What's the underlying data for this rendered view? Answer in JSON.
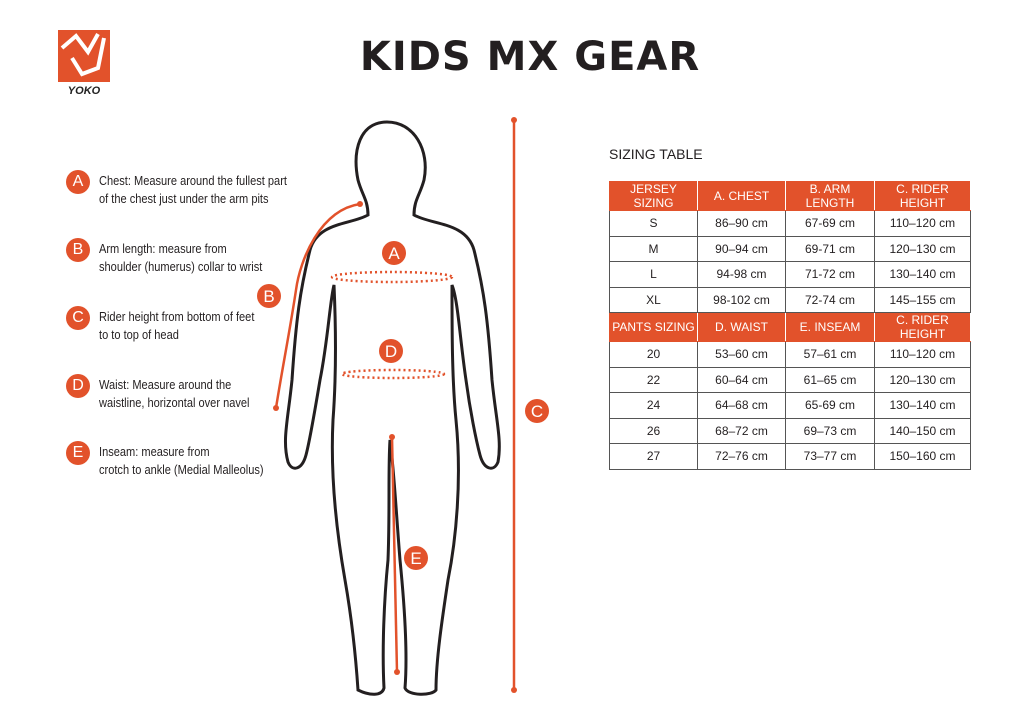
{
  "title": "KIDS MX GEAR",
  "logo_text": "YOKO",
  "accent": "#e2522b",
  "instructions": [
    {
      "letter": "A",
      "text": "Chest: Measure around  the fullest part\nof the chest just under the arm pits"
    },
    {
      "letter": "B",
      "text": "Arm length: measure from\nshoulder (humerus) collar to wrist"
    },
    {
      "letter": "C",
      "text": "Rider height from bottom of feet\nto to top of head"
    },
    {
      "letter": "D",
      "text": "Waist: Measure around the\nwaistline, horizontal over navel"
    },
    {
      "letter": "E",
      "text": "Inseam: measure from\ncrotch to ankle (Medial Malleolus)"
    }
  ],
  "figure_labels": {
    "a": "A",
    "b": "B",
    "c": "C",
    "d": "D",
    "e": "E"
  },
  "table": {
    "title": "SIZING TABLE",
    "jersey_header": [
      "JERSEY SIZING",
      "A. CHEST",
      "B. ARM LENGTH",
      "C. RIDER HEIGHT"
    ],
    "jersey_rows": [
      [
        "S",
        "86–90 cm",
        "67-69 cm",
        "110–120 cm"
      ],
      [
        "M",
        "90–94 cm",
        "69-71 cm",
        "120–130 cm"
      ],
      [
        "L",
        "94-98 cm",
        "71-72 cm",
        "130–140 cm"
      ],
      [
        "XL",
        "98-102 cm",
        "72-74 cm",
        "145–155 cm"
      ]
    ],
    "pants_header": [
      "PANTS SIZING",
      "D. WAIST",
      "E. INSEAM",
      "C. RIDER HEIGHT"
    ],
    "pants_rows": [
      [
        "20",
        "53–60 cm",
        "57–61 cm",
        "110–120 cm"
      ],
      [
        "22",
        "60–64 cm",
        "61–65 cm",
        "120–130 cm"
      ],
      [
        "24",
        "64–68 cm",
        "65-69 cm",
        "130–140 cm"
      ],
      [
        "26",
        "68–72 cm",
        "69–73 cm",
        "140–150 cm"
      ],
      [
        "27",
        "72–76 cm",
        "73–77 cm",
        "150–160 cm"
      ]
    ]
  }
}
